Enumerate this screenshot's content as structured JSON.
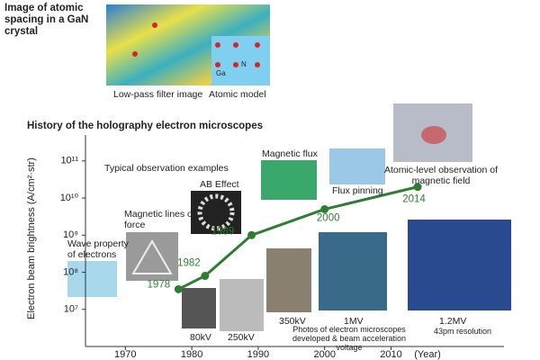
{
  "header": {
    "gan_title": "Image of atomic spacing in a GaN crystal",
    "gan_captions": [
      "Low-pass filter image",
      "Atomic model"
    ],
    "gan_atom_labels": [
      "Ga",
      "N"
    ],
    "section_title": "History of the holography electron microscopes"
  },
  "chart_data": {
    "type": "line",
    "color": "#2e7d32",
    "x": [
      1978,
      1982,
      1989,
      2000,
      2014
    ],
    "values": [
      35000000,
      80000000,
      1000000000,
      5000000000,
      20000000000
    ],
    "xlim": [
      1964,
      2027
    ],
    "xticks": [
      1970,
      1980,
      1990,
      2000,
      2010
    ],
    "x_label": "(Year)",
    "y_label": "Electron beam brightness (A/cm²·str)",
    "ylog": true,
    "ylim": [
      1000000,
      500000000000
    ],
    "yticks": [
      {
        "value": 10000000,
        "label": "10⁷"
      },
      {
        "value": 100000000,
        "label": "10⁸"
      },
      {
        "value": 1000000000,
        "label": "10⁹"
      },
      {
        "value": 10000000000,
        "label": "10¹⁰"
      },
      {
        "value": 100000000000,
        "label": "10¹¹"
      }
    ],
    "annotations": [
      "Typical observation examples",
      "Wave property of electrons",
      "Magnetic lines of force",
      "AB Effect",
      "Magnetic flux",
      "Flux pinning",
      "Atomic-level observation of magnetic field",
      "80kV",
      "250kV",
      "350kV",
      "1MV",
      "1.2MV",
      "43pm resolution",
      "Photos of electron microscopes developed & beam acceleration voltage"
    ]
  }
}
